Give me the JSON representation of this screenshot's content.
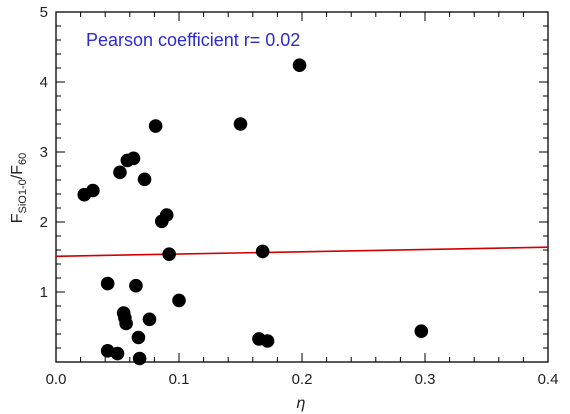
{
  "chart_data": {
    "type": "scatter",
    "title": "",
    "annotation": "Pearson coefficient r= 0.02",
    "xlabel": "η",
    "ylabel": "F",
    "ylabel_parts": {
      "base1": "F",
      "sub1": "SiO1-0",
      "sep": "/F",
      "sub2": "60"
    },
    "xlim": [
      0.0,
      0.4
    ],
    "ylim": [
      0,
      5
    ],
    "x_ticks": [
      "0.0",
      "0.1",
      "0.2",
      "0.3",
      "0.4"
    ],
    "x_tick_values": [
      0.0,
      0.1,
      0.2,
      0.3,
      0.4
    ],
    "y_ticks": [
      "1",
      "2",
      "3",
      "4",
      "5"
    ],
    "y_tick_values": [
      1,
      2,
      3,
      4,
      5
    ],
    "grid": false,
    "colors": {
      "points": "#000000",
      "fit_line": "#d10000",
      "annotation": "#2a2ad0",
      "axes": "#000000"
    },
    "points": [
      {
        "x": 0.023,
        "y": 2.39
      },
      {
        "x": 0.03,
        "y": 2.45
      },
      {
        "x": 0.042,
        "y": 1.12
      },
      {
        "x": 0.042,
        "y": 0.16
      },
      {
        "x": 0.05,
        "y": 0.12
      },
      {
        "x": 0.052,
        "y": 2.71
      },
      {
        "x": 0.055,
        "y": 0.7
      },
      {
        "x": 0.056,
        "y": 0.63
      },
      {
        "x": 0.057,
        "y": 0.55
      },
      {
        "x": 0.058,
        "y": 2.88
      },
      {
        "x": 0.063,
        "y": 2.91
      },
      {
        "x": 0.065,
        "y": 1.09
      },
      {
        "x": 0.067,
        "y": 0.35
      },
      {
        "x": 0.068,
        "y": 0.05
      },
      {
        "x": 0.072,
        "y": 2.61
      },
      {
        "x": 0.076,
        "y": 0.61
      },
      {
        "x": 0.081,
        "y": 3.37
      },
      {
        "x": 0.086,
        "y": 2.01
      },
      {
        "x": 0.09,
        "y": 2.1
      },
      {
        "x": 0.092,
        "y": 1.54
      },
      {
        "x": 0.1,
        "y": 0.88
      },
      {
        "x": 0.15,
        "y": 3.4
      },
      {
        "x": 0.165,
        "y": 0.33
      },
      {
        "x": 0.168,
        "y": 1.58
      },
      {
        "x": 0.172,
        "y": 0.3
      },
      {
        "x": 0.198,
        "y": 4.24
      },
      {
        "x": 0.297,
        "y": 0.44
      }
    ],
    "fit_line": {
      "x": [
        0.0,
        0.4
      ],
      "y": [
        1.51,
        1.64
      ]
    }
  }
}
